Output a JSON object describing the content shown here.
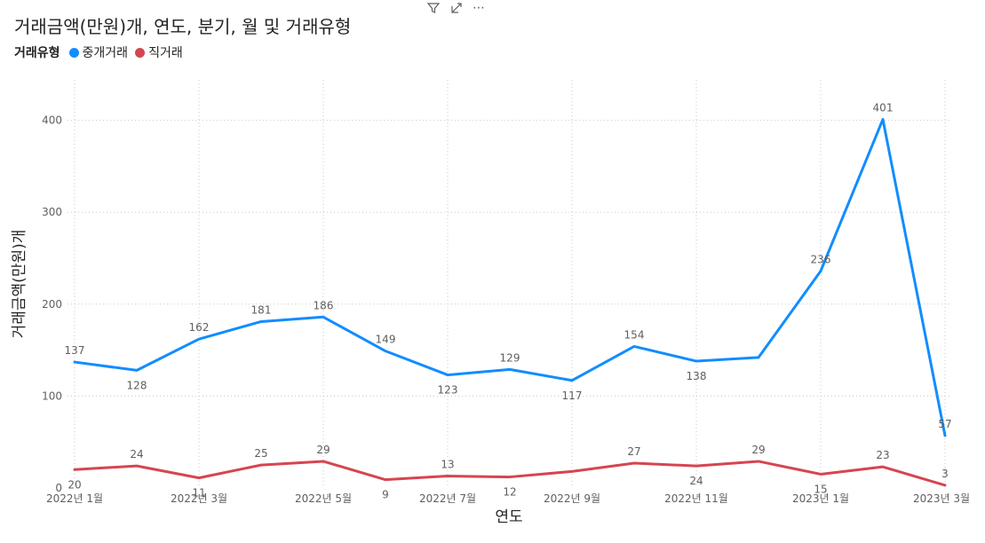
{
  "colors": {
    "series_0": "#118DFF",
    "series_1": "#D64550",
    "grid": "#c8c8c8",
    "axis_text": "#605E5C",
    "label_text": "#605E5C"
  },
  "toolbar": {
    "filter_icon": "filter-icon",
    "focus_icon": "focus-mode-icon",
    "more_label": "⋯"
  },
  "chart_data": {
    "type": "line",
    "title": "거래금액(만원)개, 연도, 분기, 월 및 거래유형",
    "xlabel": "연도",
    "ylabel": "거래금액(만원)개",
    "legend_title": "거래유형",
    "legend_position": "top-left",
    "ylim": [
      0,
      430
    ],
    "yticks": [
      0,
      100,
      200,
      300,
      400
    ],
    "grid": true,
    "x": [
      "2022-01",
      "2022-02",
      "2022-03",
      "2022-04",
      "2022-05",
      "2022-06",
      "2022-07",
      "2022-08",
      "2022-09",
      "2022-10",
      "2022-11",
      "2022-12",
      "2023-01",
      "2023-02",
      "2023-03"
    ],
    "x_tick_labels": [
      "2022년 1월",
      "",
      "2022년 3월",
      "",
      "2022년 5월",
      "",
      "2022년 7월",
      "",
      "2022년 9월",
      "",
      "2022년 11월",
      "",
      "2023년 1월",
      "",
      "2023년 3월"
    ],
    "series": [
      {
        "name": "중개거래",
        "values": [
          137,
          128,
          162,
          181,
          186,
          149,
          123,
          129,
          117,
          154,
          138,
          142,
          236,
          401,
          57
        ],
        "labels": [
          "137",
          "128",
          "162",
          "181",
          "186",
          "149",
          "123",
          "129",
          "117",
          "154",
          "138",
          "",
          "236",
          "401",
          "57"
        ]
      },
      {
        "name": "직거래",
        "values": [
          20,
          24,
          11,
          25,
          29,
          9,
          13,
          12,
          18,
          27,
          24,
          29,
          15,
          23,
          3
        ],
        "labels": [
          "20",
          "24",
          "11",
          "25",
          "29",
          "9",
          "13",
          "12",
          "",
          "27",
          "24",
          "29",
          "15",
          "23",
          "3"
        ]
      }
    ]
  }
}
